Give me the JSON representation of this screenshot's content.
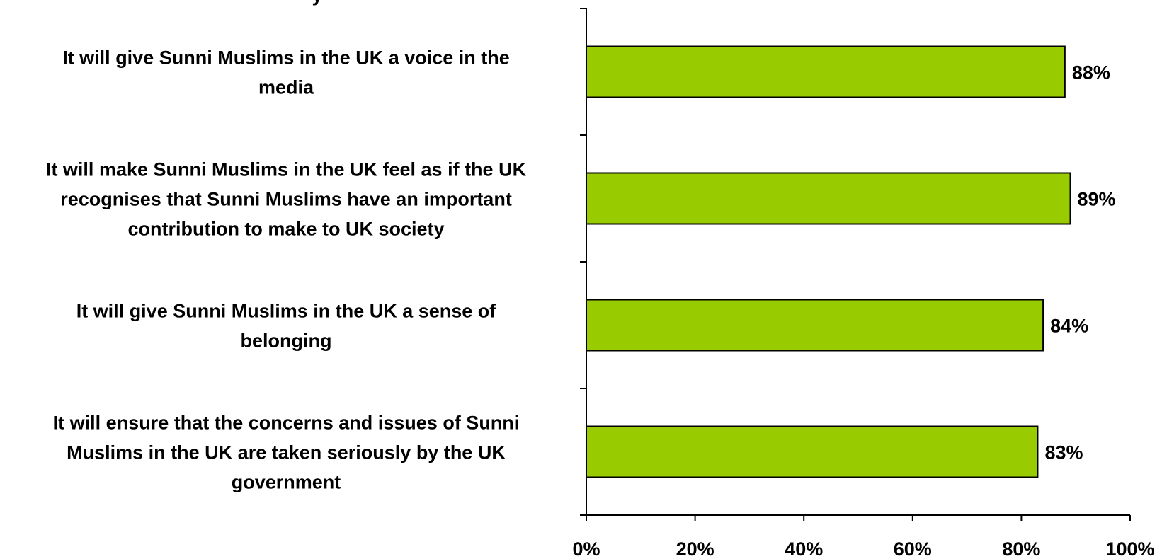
{
  "chart_data": {
    "type": "bar",
    "orientation": "horizontal",
    "title": "",
    "xlabel": "",
    "ylabel": "",
    "xlim": [
      0,
      100
    ],
    "grid": false,
    "legend": "none",
    "bar_color": "#99CC00",
    "bar_edge_color": "#000000",
    "categories": [
      {
        "lines": [
          "It will give Sunni Muslims in the UK a voice in the",
          "media"
        ]
      },
      {
        "lines": [
          "It will make Sunni Muslims in the UK feel as if the UK",
          "recognises that Sunni Muslims have an important",
          "contribution to make to UK society"
        ]
      },
      {
        "lines": [
          "It will give Sunni Muslims in the UK a sense of",
          "belonging"
        ]
      },
      {
        "lines": [
          "It will ensure that the concerns and issues of Sunni",
          "Muslims in the UK are taken seriously by the UK",
          "government"
        ]
      }
    ],
    "values": [
      88,
      89,
      84,
      83
    ],
    "data_labels": [
      "88%",
      "89%",
      "84%",
      "83%"
    ],
    "x_ticks": [
      0,
      20,
      40,
      60,
      80,
      100
    ],
    "x_tick_labels": [
      "0%",
      "20%",
      "40%",
      "60%",
      "80%",
      "100%"
    ],
    "partial_top_text": "y"
  }
}
